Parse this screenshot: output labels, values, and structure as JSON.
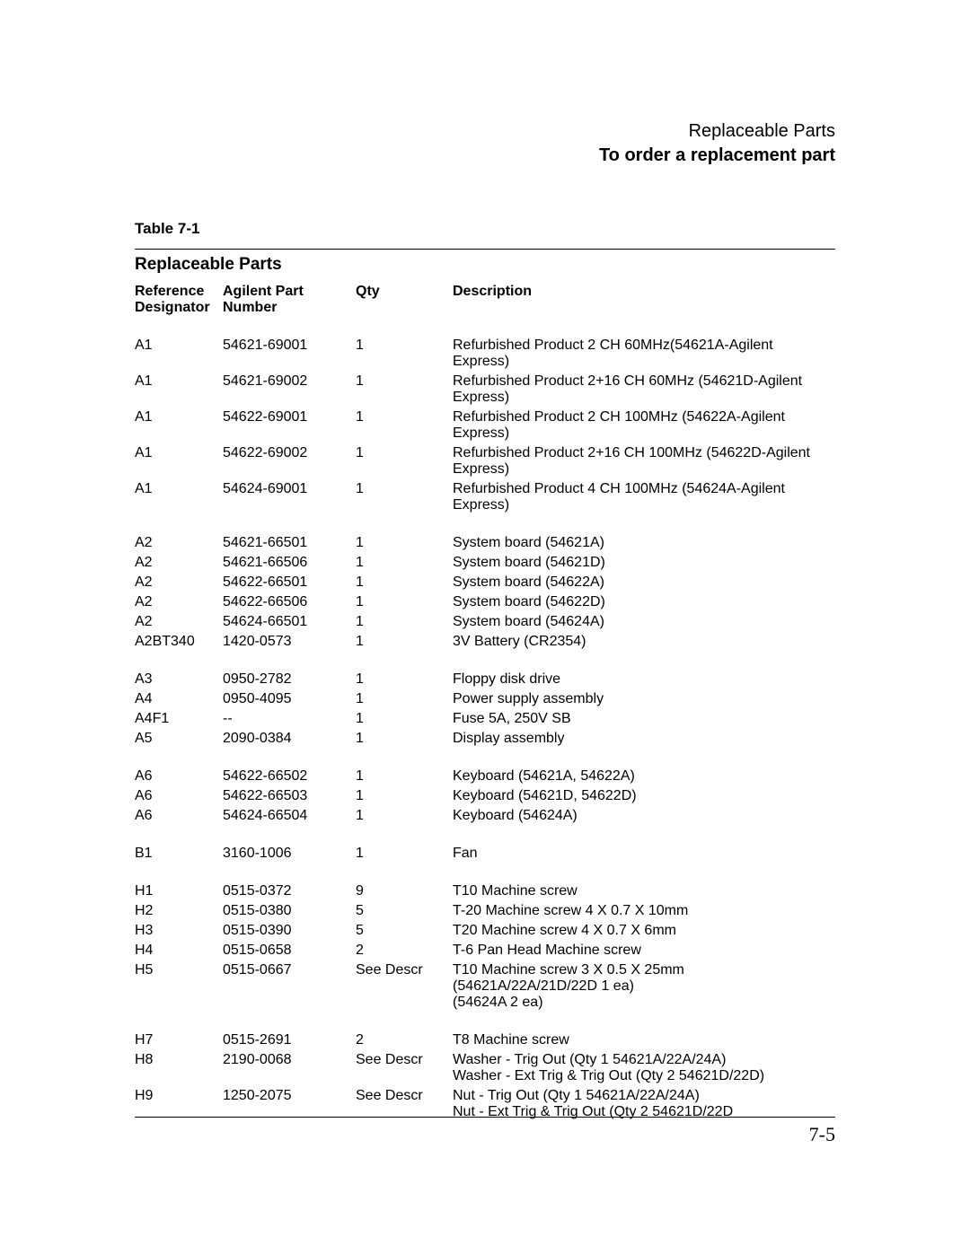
{
  "header": {
    "line1": "Replaceable Parts",
    "line2": "To order a replacement part"
  },
  "table": {
    "label": "Table 7-1",
    "title": "Replaceable Parts",
    "columns": {
      "ref": "Reference\nDesignator",
      "part": "Agilent Part\nNumber",
      "qty": "Qty",
      "desc": "Description"
    },
    "groups": [
      [
        {
          "ref": "A1",
          "part": "54621-69001",
          "qty": "1",
          "desc": "Refurbished Product 2 CH 60MHz(54621A-Agilent Express)"
        },
        {
          "ref": "A1",
          "part": "54621-69002",
          "qty": "1",
          "desc": "Refurbished Product 2+16 CH 60MHz (54621D-Agilent Express)"
        },
        {
          "ref": "A1",
          "part": "54622-69001",
          "qty": "1",
          "desc": "Refurbished Product 2 CH 100MHz (54622A-Agilent Express)"
        },
        {
          "ref": "A1",
          "part": "54622-69002",
          "qty": "1",
          "desc": "Refurbished Product 2+16 CH 100MHz (54622D-Agilent Express)"
        },
        {
          "ref": "A1",
          "part": "54624-69001",
          "qty": "1",
          "desc": "Refurbished Product 4 CH 100MHz (54624A-Agilent Express)"
        }
      ],
      [
        {
          "ref": "A2",
          "part": "54621-66501",
          "qty": "1",
          "desc": "System board (54621A)"
        },
        {
          "ref": "A2",
          "part": "54621-66506",
          "qty": "1",
          "desc": "System board (54621D)"
        },
        {
          "ref": "A2",
          "part": "54622-66501",
          "qty": "1",
          "desc": "System board (54622A)"
        },
        {
          "ref": "A2",
          "part": "54622-66506",
          "qty": "1",
          "desc": "System board (54622D)"
        },
        {
          "ref": "A2",
          "part": "54624-66501",
          "qty": "1",
          "desc": "System board (54624A)"
        },
        {
          "ref": "A2BT340",
          "part": "1420-0573",
          "qty": "1",
          "desc": "3V Battery (CR2354)"
        }
      ],
      [
        {
          "ref": "A3",
          "part": "0950-2782",
          "qty": "1",
          "desc": "Floppy disk drive"
        },
        {
          "ref": "A4",
          "part": "0950-4095",
          "qty": "1",
          "desc": "Power supply assembly"
        },
        {
          "ref": "A4F1",
          "part": "--",
          "qty": "1",
          "desc": "Fuse 5A, 250V SB"
        },
        {
          "ref": "A5",
          "part": "2090-0384",
          "qty": "1",
          "desc": "Display assembly"
        }
      ],
      [
        {
          "ref": "A6",
          "part": "54622-66502",
          "qty": "1",
          "desc": "Keyboard (54621A, 54622A)"
        },
        {
          "ref": "A6",
          "part": "54622-66503",
          "qty": "1",
          "desc": "Keyboard (54621D, 54622D)"
        },
        {
          "ref": "A6",
          "part": "54624-66504",
          "qty": "1",
          "desc": "Keyboard (54624A)"
        }
      ],
      [
        {
          "ref": "B1",
          "part": "3160-1006",
          "qty": "1",
          "desc": "Fan"
        }
      ],
      [
        {
          "ref": "H1",
          "part": "0515-0372",
          "qty": "9",
          "desc": "T10 Machine screw"
        },
        {
          "ref": "H2",
          "part": "0515-0380",
          "qty": "5",
          "desc": "T-20 Machine screw 4 X 0.7 X 10mm"
        },
        {
          "ref": "H3",
          "part": "0515-0390",
          "qty": "5",
          "desc": "T20 Machine screw 4 X 0.7 X 6mm"
        },
        {
          "ref": "H4",
          "part": "0515-0658",
          "qty": "2",
          "desc": "T-6 Pan Head Machine screw"
        },
        {
          "ref": "H5",
          "part": "0515-0667",
          "qty": "See Descr",
          "desc": "T10 Machine screw 3 X 0.5 X 25mm\n   (54621A/22A/21D/22D    1 ea)\n   (54624A    2 ea)"
        }
      ],
      [
        {
          "ref": "H7",
          "part": "0515-2691",
          "qty": "2",
          "desc": "T8 Machine screw"
        },
        {
          "ref": "H8",
          "part": "2190-0068",
          "qty": "See Descr",
          "desc": "Washer - Trig Out (Qty 1 54621A/22A/24A)\nWasher - Ext Trig & Trig Out (Qty 2 54621D/22D)"
        },
        {
          "ref": "H9",
          "part": "1250-2075",
          "qty": "See Descr",
          "desc": "Nut - Trig Out (Qty 1 54621A/22A/24A)\nNut - Ext Trig & Trig Out (Qty 2 54621D/22D"
        }
      ]
    ]
  },
  "footer": {
    "page_number": "7-5"
  }
}
